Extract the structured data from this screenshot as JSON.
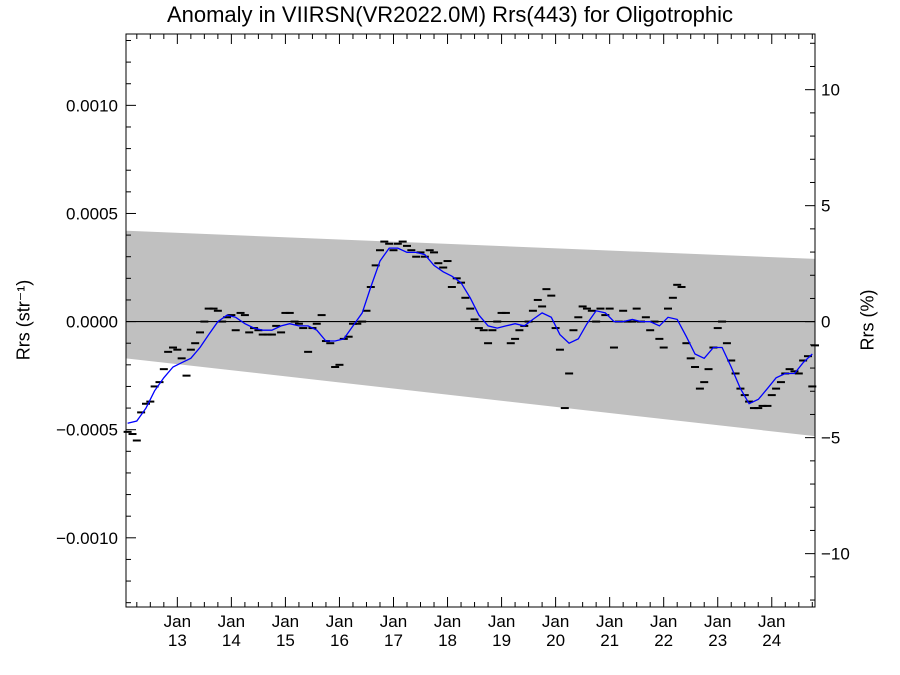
{
  "chart_data": {
    "type": "line",
    "title": "Anomaly in VIIRSN(VR2022.0M) Rrs(443) for Oligotrophic",
    "ylabel_left": "Rrs (str⁻¹)",
    "ylabel_right": "Rrs (%)",
    "ylim_left": [
      -0.00132,
      0.00133
    ],
    "ylim_right": [
      -12.3,
      12.4
    ],
    "xlim": [
      2012.05,
      2024.8
    ],
    "yticks_left": [
      "0.0010",
      "0.0005",
      "0.0000",
      "−0.0005",
      "−0.0010"
    ],
    "yticks_left_values": [
      0.001,
      0.0005,
      0.0,
      -0.0005,
      -0.001
    ],
    "yticks_right": [
      "10",
      "5",
      "0",
      "−5",
      "−10"
    ],
    "yticks_right_values": [
      10,
      5,
      0,
      -5,
      -10
    ],
    "xticks": [
      {
        "label": "Jan",
        "year": "13",
        "x": 2013.0
      },
      {
        "label": "Jan",
        "year": "14",
        "x": 2014.0
      },
      {
        "label": "Jan",
        "year": "15",
        "x": 2015.0
      },
      {
        "label": "Jan",
        "year": "16",
        "x": 2016.0
      },
      {
        "label": "Jan",
        "year": "17",
        "x": 2017.0
      },
      {
        "label": "Jan",
        "year": "18",
        "x": 2018.0
      },
      {
        "label": "Jan",
        "year": "19",
        "x": 2019.0
      },
      {
        "label": "Jan",
        "year": "20",
        "x": 2020.0
      },
      {
        "label": "Jan",
        "year": "21",
        "x": 2021.0
      },
      {
        "label": "Jan",
        "year": "22",
        "x": 2022.0
      },
      {
        "label": "Jan",
        "year": "23",
        "x": 2023.0
      },
      {
        "label": "Jan",
        "year": "24",
        "x": 2024.0
      }
    ],
    "band": {
      "color": "#c0c0c0",
      "upper": [
        [
          2012.05,
          0.00042
        ],
        [
          2024.8,
          0.00029
        ]
      ],
      "lower": [
        [
          2012.05,
          -0.00017
        ],
        [
          2024.8,
          -0.00053
        ]
      ]
    },
    "zero_line": 0.0,
    "smoothed": {
      "color": "#0000ff",
      "points": [
        [
          2012.08,
          -0.00047
        ],
        [
          2012.25,
          -0.00046
        ],
        [
          2012.42,
          -0.0004
        ],
        [
          2012.58,
          -0.00032
        ],
        [
          2012.75,
          -0.00026
        ],
        [
          2012.92,
          -0.00021
        ],
        [
          2013.08,
          -0.00019
        ],
        [
          2013.25,
          -0.00017
        ],
        [
          2013.42,
          -0.00012
        ],
        [
          2013.58,
          -6e-05
        ],
        [
          2013.75,
          0.0
        ],
        [
          2013.92,
          3e-05
        ],
        [
          2014.08,
          2e-05
        ],
        [
          2014.25,
          -1e-05
        ],
        [
          2014.42,
          -3e-05
        ],
        [
          2014.58,
          -4e-05
        ],
        [
          2014.75,
          -4e-05
        ],
        [
          2014.92,
          -2e-05
        ],
        [
          2015.08,
          -1e-05
        ],
        [
          2015.25,
          -2e-05
        ],
        [
          2015.42,
          -2e-05
        ],
        [
          2015.58,
          -4e-05
        ],
        [
          2015.75,
          -9e-05
        ],
        [
          2015.92,
          -9e-05
        ],
        [
          2016.08,
          -8e-05
        ],
        [
          2016.25,
          -2e-05
        ],
        [
          2016.42,
          4e-05
        ],
        [
          2016.58,
          0.00016
        ],
        [
          2016.75,
          0.00028
        ],
        [
          2016.92,
          0.00034
        ],
        [
          2017.08,
          0.00034
        ],
        [
          2017.25,
          0.00032
        ],
        [
          2017.42,
          0.00032
        ],
        [
          2017.58,
          0.00031
        ],
        [
          2017.75,
          0.00026
        ],
        [
          2017.92,
          0.00023
        ],
        [
          2018.08,
          0.00021
        ],
        [
          2018.25,
          0.00018
        ],
        [
          2018.42,
          0.00011
        ],
        [
          2018.58,
          3e-05
        ],
        [
          2018.75,
          -2e-05
        ],
        [
          2018.92,
          -3e-05
        ],
        [
          2019.08,
          -2e-05
        ],
        [
          2019.25,
          -1e-05
        ],
        [
          2019.42,
          -2e-05
        ],
        [
          2019.58,
          1e-05
        ],
        [
          2019.75,
          4e-05
        ],
        [
          2019.92,
          2e-05
        ],
        [
          2020.08,
          -6e-05
        ],
        [
          2020.25,
          -0.0001
        ],
        [
          2020.42,
          -8e-05
        ],
        [
          2020.58,
          -1e-05
        ],
        [
          2020.75,
          5e-05
        ],
        [
          2020.92,
          4e-05
        ],
        [
          2021.08,
          0.0
        ],
        [
          2021.25,
          0.0
        ],
        [
          2021.42,
          1e-05
        ],
        [
          2021.58,
          0.0
        ],
        [
          2021.75,
          0.0
        ],
        [
          2021.92,
          -2e-05
        ],
        [
          2022.08,
          2e-05
        ],
        [
          2022.25,
          1e-05
        ],
        [
          2022.42,
          -7e-05
        ],
        [
          2022.58,
          -0.00015
        ],
        [
          2022.75,
          -0.00017
        ],
        [
          2022.92,
          -0.00012
        ],
        [
          2023.08,
          -0.00012
        ],
        [
          2023.25,
          -0.00021
        ],
        [
          2023.42,
          -0.00031
        ],
        [
          2023.58,
          -0.00038
        ],
        [
          2023.75,
          -0.00036
        ],
        [
          2023.92,
          -0.00031
        ],
        [
          2024.08,
          -0.00026
        ],
        [
          2024.25,
          -0.00024
        ],
        [
          2024.42,
          -0.00024
        ],
        [
          2024.58,
          -0.00019
        ],
        [
          2024.75,
          -0.00015
        ]
      ]
    },
    "monthly": {
      "color": "#000000",
      "points": [
        [
          2012.08,
          -0.00051
        ],
        [
          2012.17,
          -0.00052
        ],
        [
          2012.25,
          -0.00055
        ],
        [
          2012.33,
          -0.00042
        ],
        [
          2012.42,
          -0.00038
        ],
        [
          2012.5,
          -0.00037
        ],
        [
          2012.58,
          -0.0003
        ],
        [
          2012.67,
          -0.00028
        ],
        [
          2012.75,
          -0.00022
        ],
        [
          2012.83,
          -0.00014
        ],
        [
          2012.92,
          -0.00012
        ],
        [
          2013.0,
          -0.00013
        ],
        [
          2013.08,
          -0.00017
        ],
        [
          2013.17,
          -0.00025
        ],
        [
          2013.25,
          -0.00013
        ],
        [
          2013.33,
          -0.0001
        ],
        [
          2013.42,
          -5e-05
        ],
        [
          2013.5,
          0.0
        ],
        [
          2013.58,
          6e-05
        ],
        [
          2013.67,
          6e-05
        ],
        [
          2013.75,
          5e-05
        ],
        [
          2013.83,
          0.0
        ],
        [
          2013.92,
          2e-05
        ],
        [
          2014.0,
          3e-05
        ],
        [
          2014.08,
          -4e-05
        ],
        [
          2014.17,
          4e-05
        ],
        [
          2014.25,
          3e-05
        ],
        [
          2014.33,
          -5e-05
        ],
        [
          2014.42,
          -3e-05
        ],
        [
          2014.5,
          -4e-05
        ],
        [
          2014.58,
          -6e-05
        ],
        [
          2014.67,
          -6e-05
        ],
        [
          2014.75,
          -6e-05
        ],
        [
          2014.83,
          -2e-05
        ],
        [
          2014.92,
          -5e-05
        ],
        [
          2015.0,
          4e-05
        ],
        [
          2015.08,
          4e-05
        ],
        [
          2015.17,
          0.0
        ],
        [
          2015.25,
          -1e-05
        ],
        [
          2015.33,
          -3e-05
        ],
        [
          2015.42,
          -0.00014
        ],
        [
          2015.5,
          -3e-05
        ],
        [
          2015.58,
          -1e-05
        ],
        [
          2015.67,
          3e-05
        ],
        [
          2015.75,
          -9e-05
        ],
        [
          2015.83,
          -0.0001
        ],
        [
          2015.92,
          -0.00021
        ],
        [
          2016.0,
          -0.0002
        ],
        [
          2016.08,
          -8e-05
        ],
        [
          2016.17,
          -7e-05
        ],
        [
          2016.25,
          -1e-05
        ],
        [
          2016.33,
          -1e-05
        ],
        [
          2016.42,
          0.0
        ],
        [
          2016.5,
          5e-05
        ],
        [
          2016.58,
          0.00016
        ],
        [
          2016.67,
          0.00026
        ],
        [
          2016.75,
          0.00033
        ],
        [
          2016.83,
          0.00037
        ],
        [
          2016.92,
          0.00036
        ],
        [
          2017.0,
          0.00033
        ],
        [
          2017.08,
          0.00036
        ],
        [
          2017.17,
          0.00037
        ],
        [
          2017.25,
          0.00035
        ],
        [
          2017.33,
          0.00033
        ],
        [
          2017.42,
          0.0003
        ],
        [
          2017.5,
          0.00032
        ],
        [
          2017.58,
          0.0003
        ],
        [
          2017.67,
          0.00033
        ],
        [
          2017.75,
          0.00032
        ],
        [
          2017.83,
          0.00027
        ],
        [
          2017.92,
          0.00025
        ],
        [
          2018.0,
          0.00028
        ],
        [
          2018.08,
          0.00016
        ],
        [
          2018.17,
          0.0002
        ],
        [
          2018.25,
          0.00018
        ],
        [
          2018.33,
          0.00011
        ],
        [
          2018.42,
          6e-05
        ],
        [
          2018.5,
          1e-05
        ],
        [
          2018.58,
          -3e-05
        ],
        [
          2018.67,
          -4e-05
        ],
        [
          2018.75,
          -0.0001
        ],
        [
          2018.83,
          -4e-05
        ],
        [
          2018.92,
          0.0
        ],
        [
          2019.0,
          4e-05
        ],
        [
          2019.08,
          4e-05
        ],
        [
          2019.17,
          -0.0001
        ],
        [
          2019.25,
          -8e-05
        ],
        [
          2019.33,
          -4e-05
        ],
        [
          2019.42,
          -2e-05
        ],
        [
          2019.5,
          0.0
        ],
        [
          2019.58,
          5e-05
        ],
        [
          2019.67,
          0.0001
        ],
        [
          2019.75,
          7e-05
        ],
        [
          2019.83,
          0.00015
        ],
        [
          2019.92,
          0.00012
        ],
        [
          2020.0,
          -3e-05
        ],
        [
          2020.08,
          -0.00013
        ],
        [
          2020.17,
          -0.0004
        ],
        [
          2020.25,
          -0.00024
        ],
        [
          2020.33,
          -4e-05
        ],
        [
          2020.42,
          2e-05
        ],
        [
          2020.5,
          7e-05
        ],
        [
          2020.58,
          6e-05
        ],
        [
          2020.67,
          5e-05
        ],
        [
          2020.75,
          0.0
        ],
        [
          2020.83,
          6e-05
        ],
        [
          2020.92,
          3e-05
        ],
        [
          2021.0,
          6e-05
        ],
        [
          2021.08,
          -0.00012
        ],
        [
          2021.17,
          0.0
        ],
        [
          2021.25,
          5e-05
        ],
        [
          2021.33,
          0.0
        ],
        [
          2021.42,
          0.0
        ],
        [
          2021.5,
          6e-05
        ],
        [
          2021.58,
          0.0
        ],
        [
          2021.67,
          2e-05
        ],
        [
          2021.75,
          -4e-05
        ],
        [
          2021.83,
          0.0
        ],
        [
          2021.92,
          -8e-05
        ],
        [
          2022.0,
          -0.00012
        ],
        [
          2022.08,
          6e-05
        ],
        [
          2022.17,
          0.00011
        ],
        [
          2022.25,
          0.00017
        ],
        [
          2022.33,
          0.00016
        ],
        [
          2022.42,
          -0.0001
        ],
        [
          2022.5,
          -0.00017
        ],
        [
          2022.58,
          -0.00021
        ],
        [
          2022.67,
          -0.00031
        ],
        [
          2022.75,
          -0.00028
        ],
        [
          2022.83,
          -0.00022
        ],
        [
          2022.92,
          -0.00012
        ],
        [
          2023.0,
          -3e-05
        ],
        [
          2023.08,
          0.0
        ],
        [
          2023.17,
          -0.0001
        ],
        [
          2023.25,
          -0.00018
        ],
        [
          2023.33,
          -0.00024
        ],
        [
          2023.42,
          -0.00031
        ],
        [
          2023.5,
          -0.00034
        ],
        [
          2023.58,
          -0.00037
        ],
        [
          2023.67,
          -0.0004
        ],
        [
          2023.75,
          -0.0004
        ],
        [
          2023.83,
          -0.00039
        ],
        [
          2023.92,
          -0.00039
        ],
        [
          2024.0,
          -0.00034
        ],
        [
          2024.08,
          -0.00031
        ],
        [
          2024.17,
          -0.00028
        ],
        [
          2024.25,
          -0.00024
        ],
        [
          2024.33,
          -0.00022
        ],
        [
          2024.42,
          -0.00023
        ],
        [
          2024.5,
          -0.00024
        ],
        [
          2024.58,
          -0.00018
        ],
        [
          2024.67,
          -0.00016
        ],
        [
          2024.75,
          -0.0003
        ],
        [
          2024.8,
          -0.00011
        ]
      ]
    }
  }
}
